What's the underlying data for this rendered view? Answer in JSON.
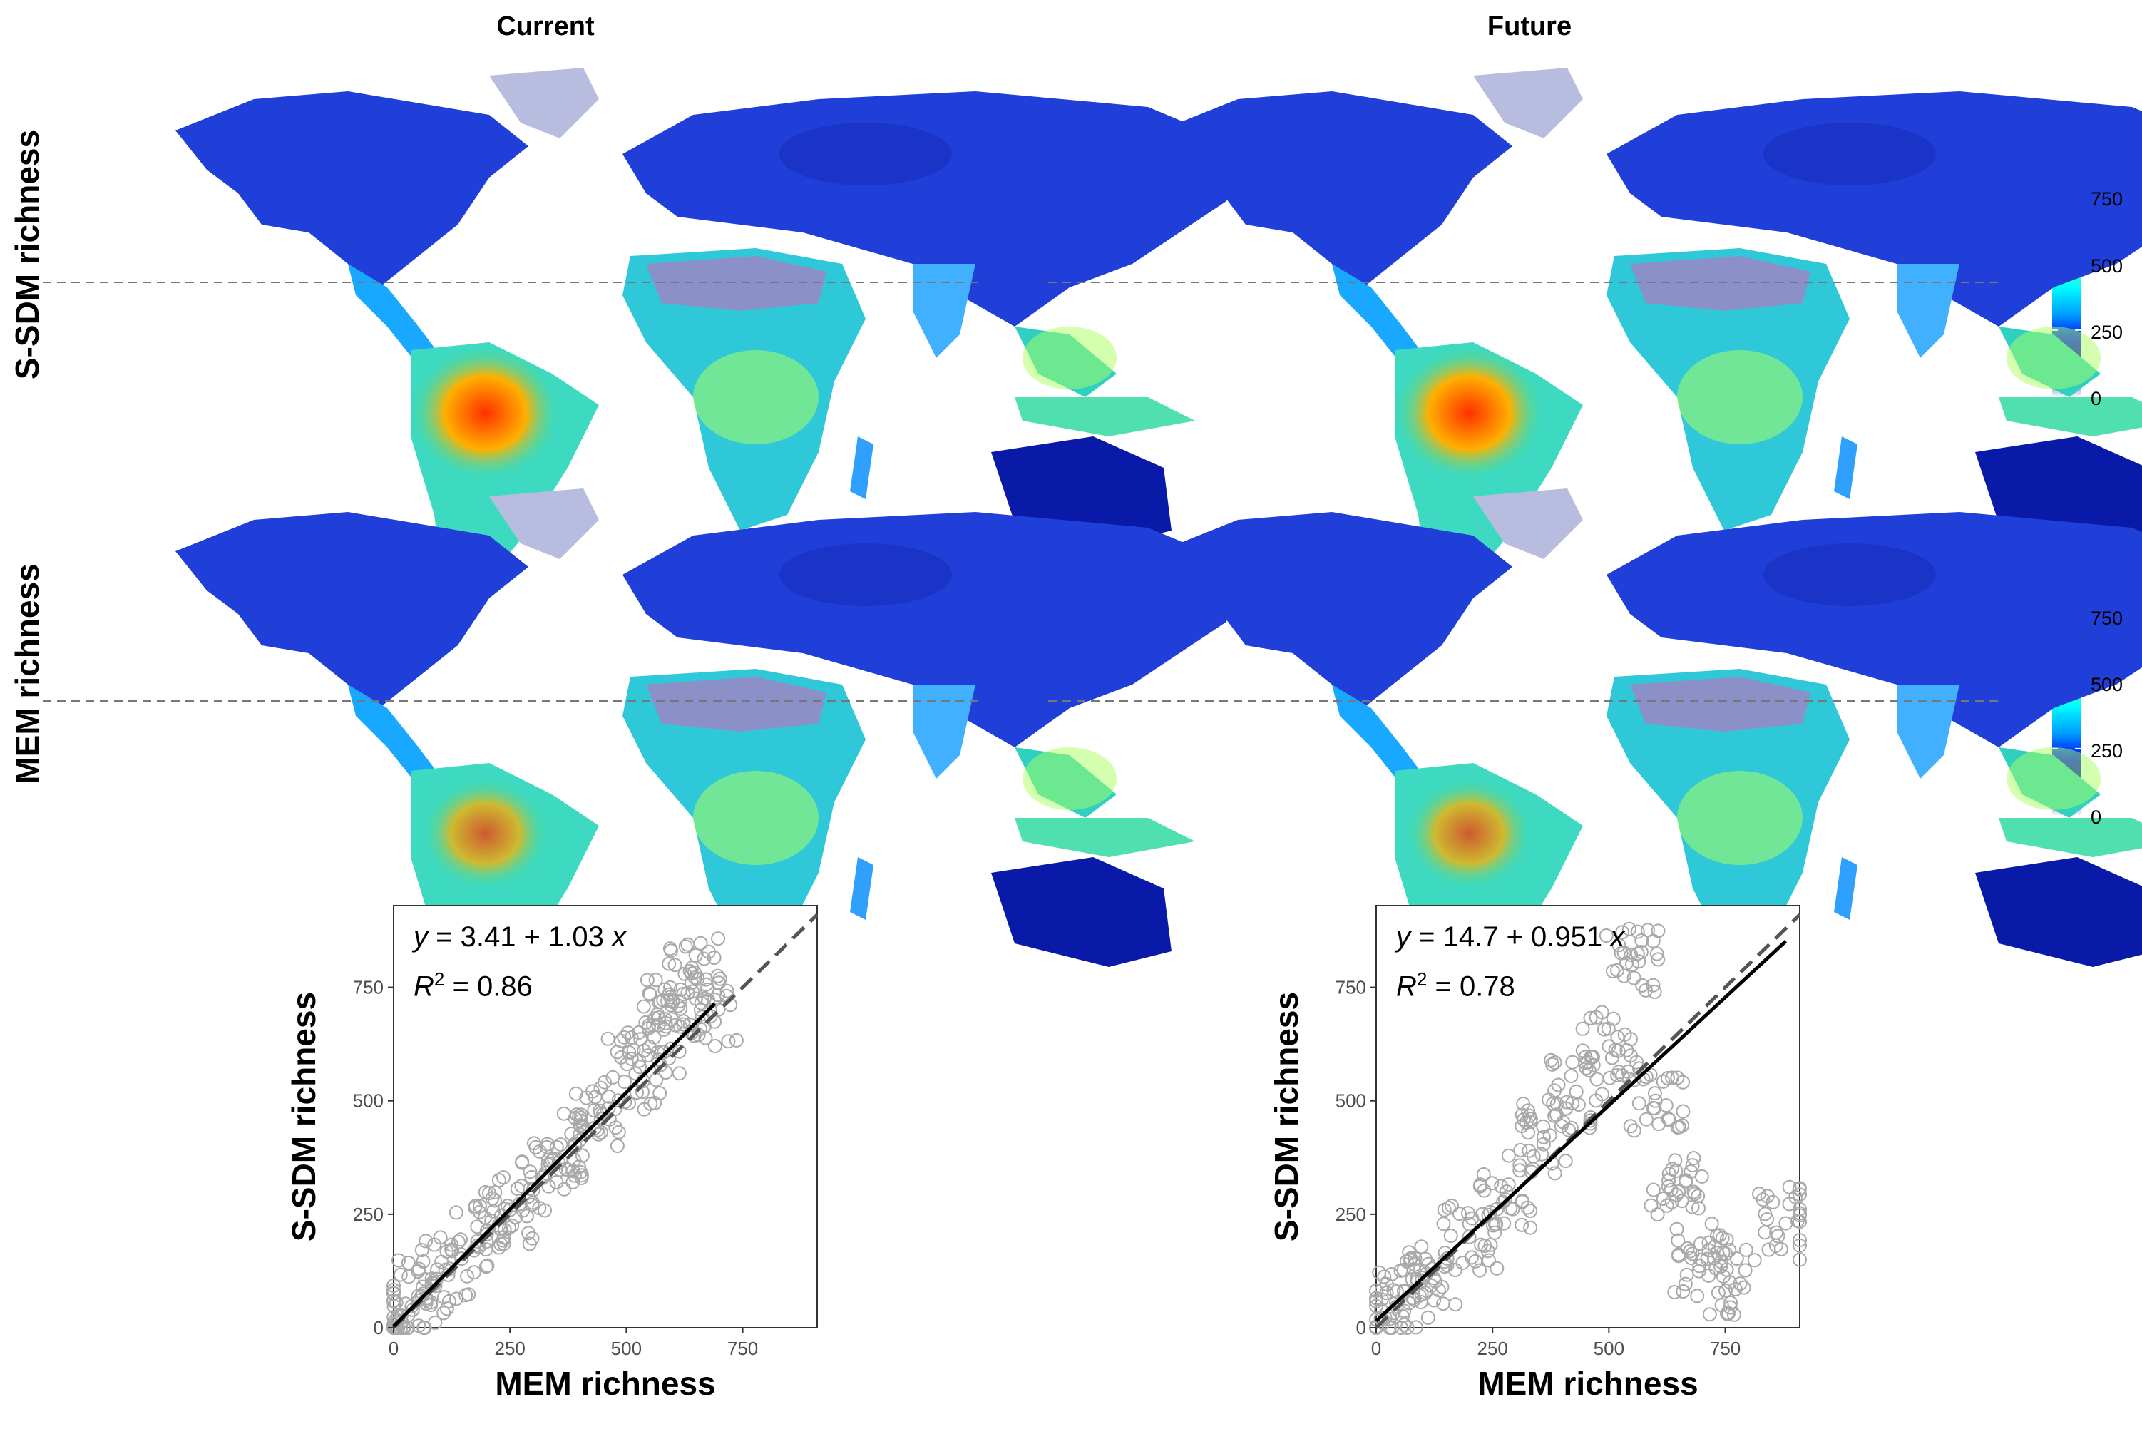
{
  "column_titles": [
    "Current",
    "Future"
  ],
  "row_labels": [
    "S-SDM richness",
    "MEM richness"
  ],
  "colorbar": {
    "ticks": [
      "0",
      "250",
      "500",
      "750"
    ],
    "tick_values": [
      0,
      250,
      500,
      750
    ],
    "max": 930,
    "colors": [
      "#ffffff",
      "#00008f",
      "#0000ff",
      "#00a0ff",
      "#00ffff",
      "#80ff80",
      "#ffff00",
      "#ff8000",
      "#ff0000",
      "#800000"
    ]
  },
  "scatter_panels": [
    {
      "equation_y": "y",
      "equation_rest": " = 3.41 + 1.03 ",
      "equation_x": "x",
      "r2_prefix": "R",
      "r2_sup": "2",
      "r2_value": " = 0.86"
    },
    {
      "equation_y": "y",
      "equation_rest": " = 14.7 + 0.951 ",
      "equation_x": "x",
      "r2_prefix": "R",
      "r2_sup": "2",
      "r2_value": " = 0.78"
    }
  ],
  "chart_data": [
    {
      "type": "scatter",
      "title": "",
      "xlabel": "MEM richness",
      "ylabel": "S-SDM richness",
      "xlim": [
        0,
        910
      ],
      "ylim": [
        0,
        930
      ],
      "xticks": [
        0,
        250,
        500,
        750
      ],
      "yticks": [
        0,
        250,
        500,
        750
      ],
      "fit": {
        "intercept": 3.41,
        "slope": 1.03,
        "r2": 0.86,
        "x_range": [
          0,
          690
        ]
      },
      "reference_line": "1:1 dashed",
      "points_description_x": [
        10,
        60,
        120,
        180,
        250,
        320,
        390,
        450,
        520,
        560,
        600,
        640,
        680
      ],
      "points_description_y": [
        15,
        70,
        130,
        190,
        260,
        330,
        400,
        470,
        560,
        640,
        720,
        780,
        700
      ]
    },
    {
      "type": "scatter",
      "title": "",
      "xlabel": "MEM richness",
      "ylabel": "S-SDM richness",
      "xlim": [
        0,
        910
      ],
      "ylim": [
        0,
        930
      ],
      "xticks": [
        0,
        250,
        500,
        750
      ],
      "yticks": [
        0,
        250,
        500,
        750
      ],
      "fit": {
        "intercept": 14.7,
        "slope": 0.951,
        "r2": 0.78,
        "x_range": [
          0,
          880
        ]
      },
      "reference_line": "1:1 dashed",
      "points_description_x": [
        10,
        60,
        120,
        200,
        280,
        360,
        430,
        500,
        550,
        600,
        650,
        700,
        760,
        880
      ],
      "points_description_y": [
        20,
        80,
        130,
        200,
        300,
        420,
        520,
        620,
        800,
        500,
        300,
        150,
        100,
        230
      ]
    }
  ]
}
